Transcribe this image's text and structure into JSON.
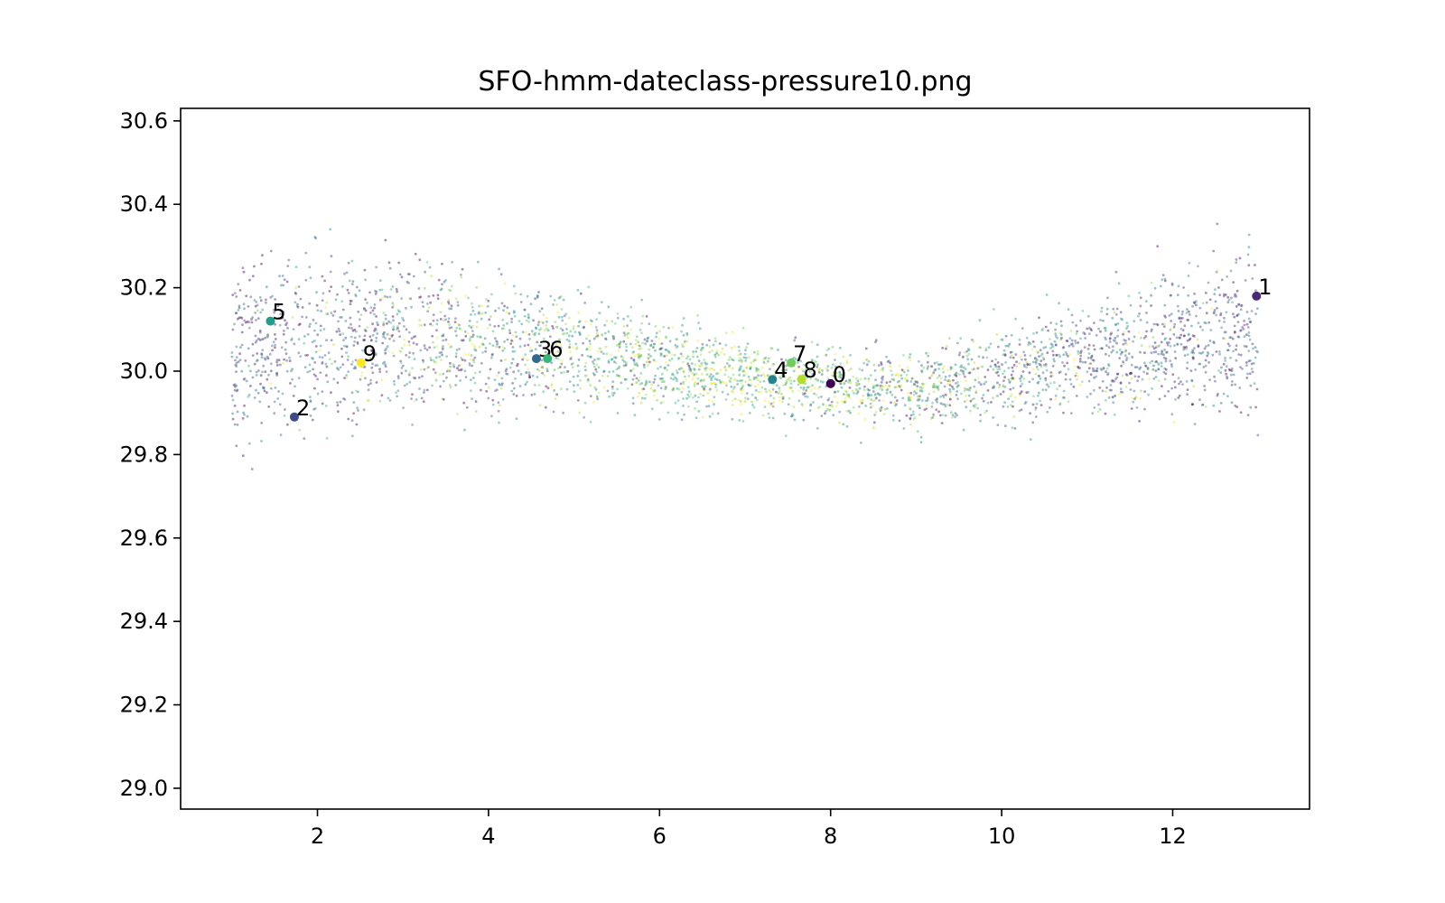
{
  "chart_data": {
    "type": "scatter",
    "title": "SFO-hmm-dateclass-pressure10.png",
    "xlabel": "",
    "ylabel": "",
    "xlim": [
      0.4,
      13.6
    ],
    "ylim": [
      28.95,
      30.63
    ],
    "xticks": [
      2,
      4,
      6,
      8,
      10,
      12
    ],
    "xtick_labels": [
      "2",
      "4",
      "6",
      "8",
      "10",
      "12"
    ],
    "yticks": [
      29.0,
      29.2,
      29.4,
      29.6,
      29.8,
      30.0,
      30.2,
      30.4,
      30.6
    ],
    "ytick_labels": [
      "29.0",
      "29.2",
      "29.4",
      "29.6",
      "29.8",
      "30.0",
      "30.2",
      "30.4",
      "30.6"
    ],
    "grid": false,
    "legend": false,
    "colormap": "viridis",
    "class_colors": [
      "#440154",
      "#482878",
      "#3e4989",
      "#31688e",
      "#26828e",
      "#1f9e89",
      "#35b779",
      "#6ece58",
      "#b5de2b",
      "#fde725"
    ],
    "background_cloud": {
      "description_of_points": "dense cloud of small semi-transparent points, x from 1 to 13, pressure mostly between 29.7 and 30.35",
      "x_range": [
        1.0,
        13.0
      ],
      "y_center_by_x": [
        [
          1,
          30.05
        ],
        [
          3,
          30.08
        ],
        [
          5,
          30.05
        ],
        [
          7,
          29.98
        ],
        [
          9,
          29.95
        ],
        [
          11,
          30.03
        ],
        [
          13,
          30.1
        ]
      ],
      "y_spread_by_x": [
        [
          1,
          0.2
        ],
        [
          3,
          0.17
        ],
        [
          5,
          0.12
        ],
        [
          7,
          0.08
        ],
        [
          9,
          0.08
        ],
        [
          11,
          0.12
        ],
        [
          13,
          0.19
        ]
      ]
    },
    "cluster_centers": [
      {
        "label": "0",
        "x": 8.0,
        "y": 29.97,
        "color_index": 0
      },
      {
        "label": "1",
        "x": 12.98,
        "y": 30.18,
        "color_index": 1
      },
      {
        "label": "2",
        "x": 1.73,
        "y": 29.89,
        "color_index": 2
      },
      {
        "label": "3",
        "x": 4.56,
        "y": 30.03,
        "color_index": 3
      },
      {
        "label": "4",
        "x": 7.32,
        "y": 29.98,
        "color_index": 4
      },
      {
        "label": "5",
        "x": 1.45,
        "y": 30.12,
        "color_index": 5
      },
      {
        "label": "6",
        "x": 4.69,
        "y": 30.03,
        "color_index": 6
      },
      {
        "label": "7",
        "x": 7.54,
        "y": 30.02,
        "color_index": 7
      },
      {
        "label": "8",
        "x": 7.66,
        "y": 29.98,
        "color_index": 8
      },
      {
        "label": "9",
        "x": 2.51,
        "y": 30.02,
        "color_index": 9
      }
    ]
  }
}
